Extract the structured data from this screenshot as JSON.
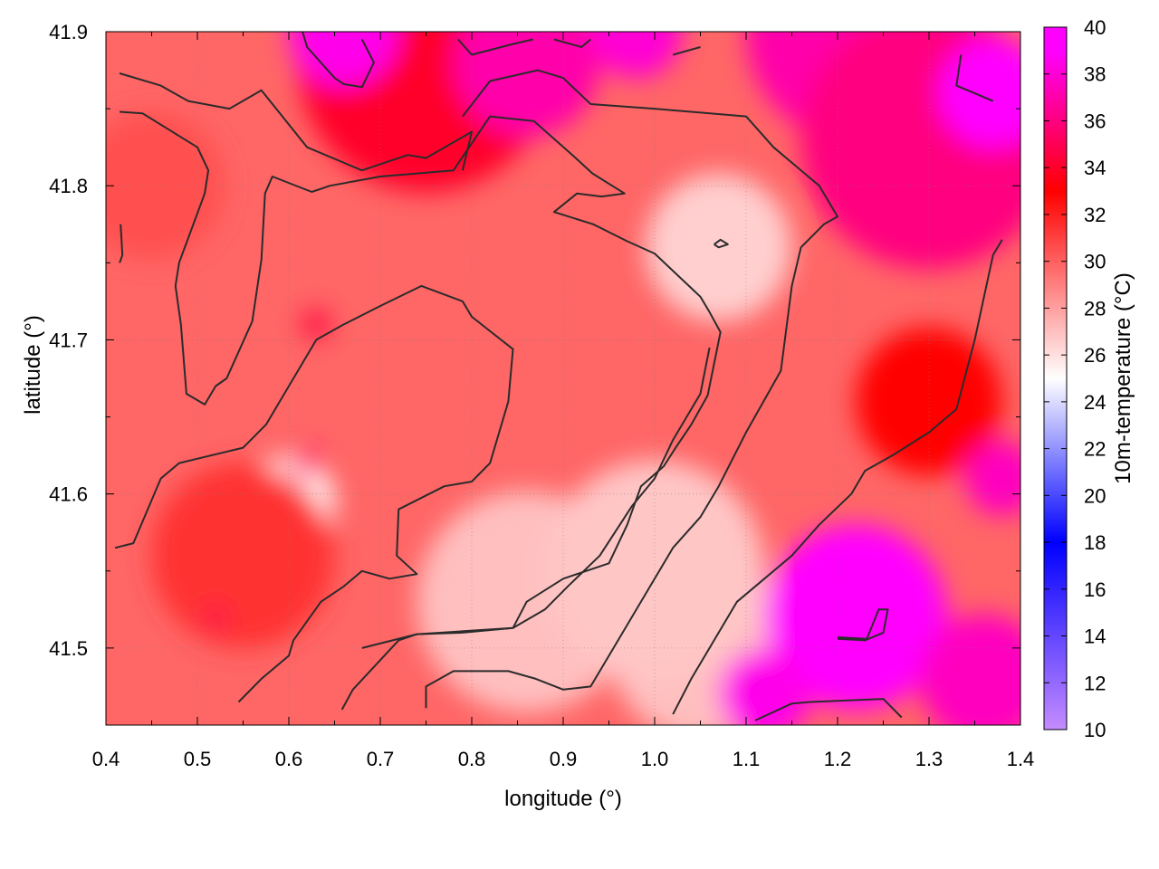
{
  "chart_data": {
    "type": "heatmap",
    "xlabel": "longitude (°)",
    "ylabel": "latitude (°)",
    "colorbar_label": "10m-temperature (°C)",
    "xlim": [
      0.4,
      1.4
    ],
    "ylim": [
      41.45,
      41.9
    ],
    "x_ticks": [
      0.4,
      0.5,
      0.6,
      0.7,
      0.8,
      0.9,
      1.0,
      1.1,
      1.2,
      1.3,
      1.4
    ],
    "x_tick_labels": [
      "0.4",
      "0.5",
      "0.6",
      "0.7",
      "0.8",
      "0.9",
      "1.0",
      "1.1",
      "1.2",
      "1.3",
      "1.4"
    ],
    "y_ticks": [
      41.5,
      41.6,
      41.7,
      41.8,
      41.9
    ],
    "y_tick_labels": [
      "41.5",
      "41.6",
      "41.7",
      "41.8",
      "41.9"
    ],
    "colorbar_range": [
      10,
      40
    ],
    "colorbar_ticks": [
      10,
      12,
      14,
      16,
      18,
      20,
      22,
      24,
      26,
      28,
      30,
      32,
      34,
      36,
      38,
      40
    ],
    "colorbar_tick_labels": [
      "10",
      "12",
      "14",
      "16",
      "18",
      "20",
      "22",
      "24",
      "26",
      "28",
      "30",
      "32",
      "34",
      "36",
      "38",
      "40"
    ],
    "colormap": [
      {
        "value": 10,
        "color": "#c58cff"
      },
      {
        "value": 18,
        "color": "#0000ff"
      },
      {
        "value": 25,
        "color": "#ffffff"
      },
      {
        "value": 33,
        "color": "#ff0000"
      },
      {
        "value": 39,
        "color": "#ff00ff"
      }
    ],
    "grid": true,
    "regions": [
      {
        "lon": 0.6,
        "lat": 41.594,
        "r": 0.05,
        "t": 25.0
      },
      {
        "lon": 0.55,
        "lat": 41.56,
        "r": 0.1,
        "t": 31.5
      },
      {
        "lon": 0.45,
        "lat": 41.8,
        "r": 0.08,
        "t": 30.5
      },
      {
        "lon": 0.75,
        "lat": 41.88,
        "r": 0.14,
        "t": 34.0
      },
      {
        "lon": 0.66,
        "lat": 41.9,
        "r": 0.06,
        "t": 38.5
      },
      {
        "lon": 0.86,
        "lat": 41.88,
        "r": 0.08,
        "t": 37.0
      },
      {
        "lon": 0.98,
        "lat": 41.9,
        "r": 0.05,
        "t": 38.0
      },
      {
        "lon": 1.22,
        "lat": 41.9,
        "r": 0.12,
        "t": 37.0
      },
      {
        "lon": 1.3,
        "lat": 41.83,
        "r": 0.14,
        "t": 36.0
      },
      {
        "lon": 1.37,
        "lat": 41.86,
        "r": 0.06,
        "t": 39.5
      },
      {
        "lon": 1.07,
        "lat": 41.76,
        "r": 0.08,
        "t": 26.5
      },
      {
        "lon": 0.86,
        "lat": 41.53,
        "r": 0.12,
        "t": 27.0
      },
      {
        "lon": 1.05,
        "lat": 41.5,
        "r": 0.1,
        "t": 27.0
      },
      {
        "lon": 1.0,
        "lat": 41.55,
        "r": 0.12,
        "t": 26.8
      },
      {
        "lon": 1.22,
        "lat": 41.52,
        "r": 0.1,
        "t": 39.5
      },
      {
        "lon": 1.12,
        "lat": 41.47,
        "r": 0.05,
        "t": 38.5
      },
      {
        "lon": 1.36,
        "lat": 41.48,
        "r": 0.07,
        "t": 37.5
      },
      {
        "lon": 1.3,
        "lat": 41.66,
        "r": 0.08,
        "t": 33.0
      },
      {
        "lon": 1.38,
        "lat": 41.61,
        "r": 0.04,
        "t": 37.5
      },
      {
        "lon": 0.62,
        "lat": 41.62,
        "r": 0.015,
        "t": 36.0
      },
      {
        "lon": 0.52,
        "lat": 41.52,
        "r": 0.012,
        "t": 35.0
      },
      {
        "lon": 0.63,
        "lat": 41.71,
        "r": 0.015,
        "t": 34.5
      }
    ],
    "contours": [
      [
        [
          0.415,
          41.873
        ],
        [
          0.46,
          41.865
        ],
        [
          0.49,
          41.855
        ],
        [
          0.535,
          41.85
        ],
        [
          0.57,
          41.862
        ],
        [
          0.62,
          41.825
        ],
        [
          0.68,
          41.81
        ],
        [
          0.73,
          41.82
        ],
        [
          0.75,
          41.818
        ],
        [
          0.8,
          41.835
        ],
        [
          0.79,
          41.81
        ]
      ],
      [
        [
          0.415,
          41.848
        ],
        [
          0.44,
          41.847
        ],
        [
          0.5,
          41.825
        ],
        [
          0.512,
          41.81
        ],
        [
          0.508,
          41.795
        ],
        [
          0.48,
          41.75
        ],
        [
          0.476,
          41.735
        ],
        [
          0.482,
          41.71
        ],
        [
          0.488,
          41.665
        ],
        [
          0.508,
          41.658
        ],
        [
          0.52,
          41.67
        ],
        [
          0.532,
          41.675
        ],
        [
          0.56,
          41.712
        ],
        [
          0.57,
          41.752
        ],
        [
          0.574,
          41.795
        ],
        [
          0.582,
          41.806
        ],
        [
          0.625,
          41.796
        ],
        [
          0.645,
          41.8
        ],
        [
          0.7,
          41.806
        ],
        [
          0.78,
          41.81
        ],
        [
          0.82,
          41.845
        ],
        [
          0.868,
          41.842
        ],
        [
          0.91,
          41.82
        ],
        [
          0.932,
          41.808
        ],
        [
          0.967,
          41.795
        ],
        [
          0.942,
          41.793
        ],
        [
          0.915,
          41.795
        ],
        [
          0.89,
          41.783
        ],
        [
          0.933,
          41.775
        ],
        [
          0.97,
          41.764
        ],
        [
          1.0,
          41.756
        ],
        [
          1.05,
          41.728
        ],
        [
          1.06,
          41.718
        ],
        [
          1.072,
          41.705
        ],
        [
          1.058,
          41.664
        ],
        [
          1.04,
          41.645
        ],
        [
          1.023,
          41.63
        ],
        [
          1.01,
          41.618
        ],
        [
          0.985,
          41.605
        ],
        [
          0.97,
          41.58
        ],
        [
          0.95,
          41.555
        ],
        [
          0.9,
          41.545
        ],
        [
          0.86,
          41.53
        ],
        [
          0.845,
          41.513
        ],
        [
          0.74,
          41.509
        ],
        [
          0.68,
          41.5
        ]
      ],
      [
        [
          0.41,
          41.565
        ],
        [
          0.43,
          41.568
        ],
        [
          0.46,
          41.61
        ],
        [
          0.48,
          41.62
        ],
        [
          0.55,
          41.63
        ],
        [
          0.575,
          41.645
        ],
        [
          0.63,
          41.7
        ],
        [
          0.66,
          41.71
        ],
        [
          0.7,
          41.722
        ],
        [
          0.745,
          41.735
        ],
        [
          0.79,
          41.725
        ],
        [
          0.8,
          41.715
        ],
        [
          0.845,
          41.694
        ],
        [
          0.84,
          41.66
        ],
        [
          0.82,
          41.62
        ],
        [
          0.8,
          41.608
        ],
        [
          0.77,
          41.605
        ],
        [
          0.72,
          41.59
        ],
        [
          0.718,
          41.56
        ],
        [
          0.74,
          41.548
        ],
        [
          0.71,
          41.545
        ],
        [
          0.68,
          41.55
        ],
        [
          0.66,
          41.54
        ],
        [
          0.635,
          41.53
        ],
        [
          0.605,
          41.505
        ],
        [
          0.6,
          41.495
        ],
        [
          0.57,
          41.48
        ],
        [
          0.545,
          41.465
        ]
      ],
      [
        [
          0.658,
          41.46
        ],
        [
          0.67,
          41.473
        ],
        [
          0.72,
          41.505
        ],
        [
          0.74,
          41.509
        ],
        [
          0.79,
          41.51
        ],
        [
          0.845,
          41.513
        ],
        [
          0.88,
          41.525
        ],
        [
          0.905,
          41.54
        ],
        [
          0.94,
          41.56
        ],
        [
          0.975,
          41.592
        ],
        [
          1.0,
          41.61
        ],
        [
          1.02,
          41.635
        ],
        [
          1.05,
          41.665
        ],
        [
          1.06,
          41.695
        ]
      ],
      [
        [
          0.75,
          41.461
        ],
        [
          0.75,
          41.475
        ],
        [
          0.78,
          41.485
        ],
        [
          0.84,
          41.485
        ],
        [
          0.87,
          41.48
        ],
        [
          0.9,
          41.473
        ],
        [
          0.93,
          41.475
        ],
        [
          0.96,
          41.505
        ],
        [
          1.0,
          41.545
        ],
        [
          1.02,
          41.565
        ],
        [
          1.05,
          41.585
        ],
        [
          1.07,
          41.605
        ],
        [
          1.1,
          41.64
        ],
        [
          1.138,
          41.68
        ],
        [
          1.15,
          41.735
        ],
        [
          1.16,
          41.76
        ],
        [
          1.185,
          41.775
        ],
        [
          1.2,
          41.78
        ],
        [
          1.18,
          41.8
        ],
        [
          1.13,
          41.825
        ],
        [
          1.1,
          41.845
        ],
        [
          1.0,
          41.85
        ],
        [
          0.93,
          41.853
        ],
        [
          0.9,
          41.87
        ],
        [
          0.872,
          41.875
        ],
        [
          0.82,
          41.868
        ],
        [
          0.79,
          41.845
        ]
      ],
      [
        [
          1.02,
          41.457
        ],
        [
          1.04,
          41.48
        ],
        [
          1.06,
          41.5
        ],
        [
          1.09,
          41.53
        ],
        [
          1.12,
          41.545
        ],
        [
          1.15,
          41.56
        ],
        [
          1.18,
          41.58
        ],
        [
          1.215,
          41.6
        ],
        [
          1.23,
          41.615
        ],
        [
          1.26,
          41.625
        ],
        [
          1.3,
          41.64
        ],
        [
          1.33,
          41.655
        ],
        [
          1.35,
          41.7
        ],
        [
          1.37,
          41.755
        ],
        [
          1.38,
          41.765
        ]
      ],
      [
        [
          1.11,
          41.453
        ],
        [
          1.15,
          41.464
        ],
        [
          1.17,
          41.465
        ],
        [
          1.25,
          41.467
        ],
        [
          1.27,
          41.455
        ]
      ],
      [
        [
          1.2,
          41.506
        ],
        [
          1.23,
          41.505
        ],
        [
          1.25,
          41.51
        ],
        [
          1.255,
          41.525
        ],
        [
          1.245,
          41.525
        ],
        [
          1.232,
          41.506
        ],
        [
          1.2,
          41.507
        ]
      ],
      [
        [
          1.065,
          41.762
        ],
        [
          1.072,
          41.765
        ],
        [
          1.08,
          41.762
        ],
        [
          1.07,
          41.76
        ],
        [
          1.065,
          41.762
        ]
      ],
      [
        [
          0.416,
          41.775
        ],
        [
          0.418,
          41.755
        ],
        [
          0.415,
          41.75
        ]
      ],
      [
        [
          0.68,
          41.895
        ],
        [
          0.693,
          41.88
        ],
        [
          0.68,
          41.864
        ],
        [
          0.66,
          41.866
        ],
        [
          0.65,
          41.87
        ],
        [
          0.62,
          41.89
        ],
        [
          0.615,
          41.9
        ]
      ],
      [
        [
          0.785,
          41.895
        ],
        [
          0.8,
          41.885
        ],
        [
          0.845,
          41.892
        ],
        [
          0.867,
          41.895
        ]
      ],
      [
        [
          0.89,
          41.895
        ],
        [
          0.92,
          41.89
        ],
        [
          0.93,
          41.895
        ]
      ],
      [
        [
          1.02,
          41.885
        ],
        [
          1.05,
          41.89
        ]
      ],
      [
        [
          1.335,
          41.885
        ],
        [
          1.33,
          41.865
        ],
        [
          1.37,
          41.855
        ]
      ]
    ]
  }
}
